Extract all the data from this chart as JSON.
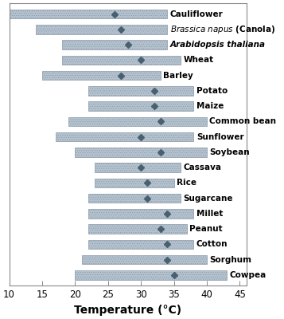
{
  "crops": [
    {
      "name": "Cauliflower",
      "italic_all": false,
      "italic_part": false,
      "xmin": 10,
      "xmax": 34,
      "marker": 26
    },
    {
      "name": "Brassica napus (Canola)",
      "italic_all": false,
      "italic_part": true,
      "xmin": 14,
      "xmax": 34,
      "marker": 27
    },
    {
      "name": "Arabidopsis thaliana",
      "italic_all": true,
      "italic_part": false,
      "xmin": 18,
      "xmax": 34,
      "marker": 28
    },
    {
      "name": "Wheat",
      "italic_all": false,
      "italic_part": false,
      "xmin": 18,
      "xmax": 36,
      "marker": 30
    },
    {
      "name": "Barley",
      "italic_all": false,
      "italic_part": false,
      "xmin": 15,
      "xmax": 33,
      "marker": 27
    },
    {
      "name": "Potato",
      "italic_all": false,
      "italic_part": false,
      "xmin": 22,
      "xmax": 38,
      "marker": 32
    },
    {
      "name": "Maize",
      "italic_all": false,
      "italic_part": false,
      "xmin": 22,
      "xmax": 38,
      "marker": 32
    },
    {
      "name": "Common bean",
      "italic_all": false,
      "italic_part": false,
      "xmin": 19,
      "xmax": 40,
      "marker": 33
    },
    {
      "name": "Sunflower",
      "italic_all": false,
      "italic_part": false,
      "xmin": 17,
      "xmax": 38,
      "marker": 30
    },
    {
      "name": "Soybean",
      "italic_all": false,
      "italic_part": false,
      "xmin": 20,
      "xmax": 40,
      "marker": 33
    },
    {
      "name": "Cassava",
      "italic_all": false,
      "italic_part": false,
      "xmin": 23,
      "xmax": 36,
      "marker": 30
    },
    {
      "name": "Rice",
      "italic_all": false,
      "italic_part": false,
      "xmin": 23,
      "xmax": 35,
      "marker": 31
    },
    {
      "name": "Sugarcane",
      "italic_all": false,
      "italic_part": false,
      "xmin": 22,
      "xmax": 36,
      "marker": 31
    },
    {
      "name": "Millet",
      "italic_all": false,
      "italic_part": false,
      "xmin": 22,
      "xmax": 38,
      "marker": 34
    },
    {
      "name": "Peanut",
      "italic_all": false,
      "italic_part": false,
      "xmin": 22,
      "xmax": 37,
      "marker": 33
    },
    {
      "name": "Cotton",
      "italic_all": false,
      "italic_part": false,
      "xmin": 22,
      "xmax": 38,
      "marker": 34
    },
    {
      "name": "Sorghum",
      "italic_all": false,
      "italic_part": false,
      "xmin": 21,
      "xmax": 40,
      "marker": 34
    },
    {
      "name": "Cowpea",
      "italic_all": false,
      "italic_part": false,
      "xmin": 20,
      "xmax": 43,
      "marker": 35
    }
  ],
  "bar_facecolor": "#b4c2ce",
  "bar_edgecolor": "#8898a8",
  "dot_color": "#dce4ea",
  "marker_color": "#4a6070",
  "bar_height": 0.6,
  "xlim": [
    10,
    46
  ],
  "xticks": [
    10,
    15,
    20,
    25,
    30,
    35,
    40,
    45
  ],
  "xlabel": "Temperature (°C)",
  "xlabel_fontsize": 10,
  "tick_fontsize": 8.5,
  "label_fontsize": 7.5,
  "bg_color": "#ffffff",
  "panel_bg": "#ffffff",
  "border_color": "#888888"
}
